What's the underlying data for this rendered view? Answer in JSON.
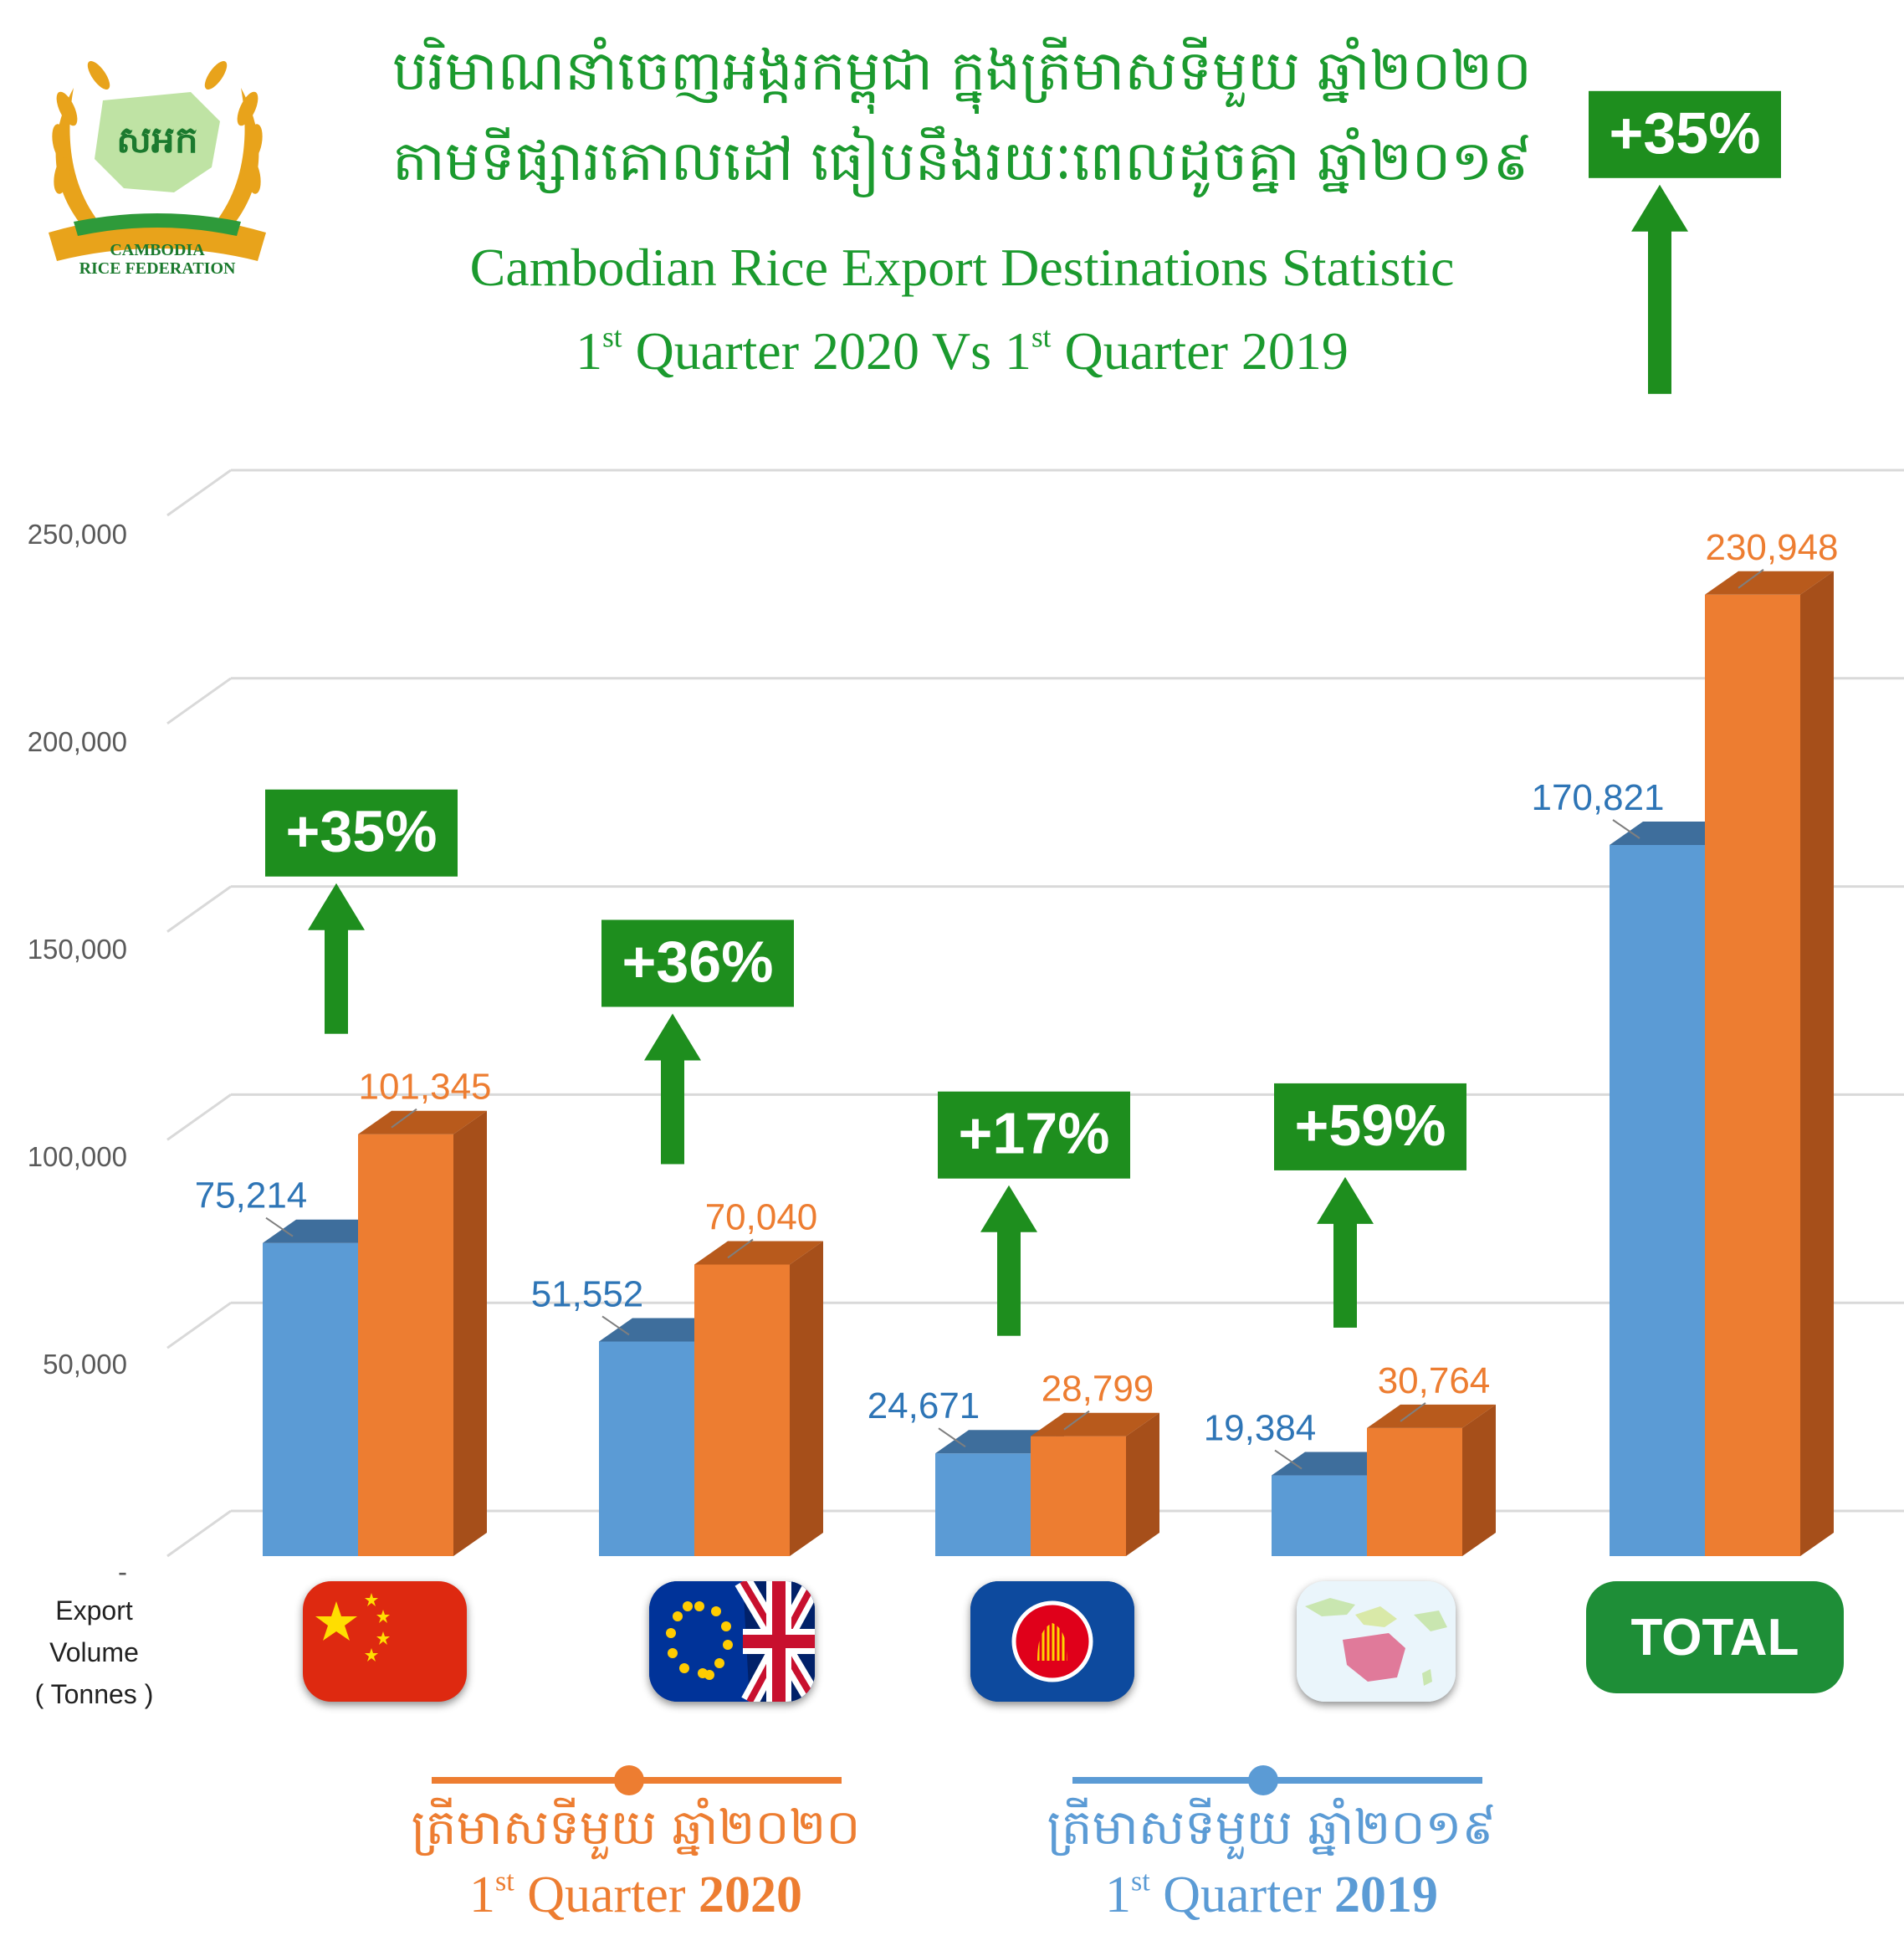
{
  "header": {
    "title_km_line1": "បរិមាណនាំចេញអង្ករកម្ពុជា ក្នុងត្រីមាសទីមួយ ឆ្នាំ២០២០",
    "title_km_line2": "តាមទីផ្សារគោលដៅ ធៀបនឹងរយៈពេលដូចគ្នា ឆ្នាំ២០១៩",
    "title_en_line1": "Cambodian Rice Export Destinations Statistic",
    "title_en_line2_num1": "1",
    "title_en_line2_sup1": "st",
    "title_en_line2_mid": " Quarter 2020 Vs 1",
    "title_en_line2_sup2": "st",
    "title_en_line2_end": " Quarter 2019"
  },
  "logo": {
    "badge_text": "សអក",
    "name_line1": "CAMBODIA",
    "name_line2": "RICE FEDERATION",
    "colors": {
      "green": "#2e9a3a",
      "gold": "#e8a31b"
    }
  },
  "axis": {
    "title_line1": "Export",
    "title_line2": "Volume",
    "title_line3": "( Tonnes )"
  },
  "chart_data": {
    "type": "bar",
    "categories": [
      "China",
      "EU & UK",
      "ASEAN",
      "Asia-Pacific",
      "TOTAL"
    ],
    "series": [
      {
        "name": "1st Quarter 2019",
        "color": "#5b9bd5",
        "values": [
          75214,
          51552,
          24671,
          19384,
          170821
        ]
      },
      {
        "name": "1st Quarter 2020",
        "color": "#ed7d31",
        "values": [
          101345,
          70040,
          28799,
          30764,
          230948
        ]
      }
    ],
    "value_labels_2019": [
      "75,214",
      "51,552",
      "24,671",
      "19,384",
      "170,821"
    ],
    "value_labels_2020": [
      "101,345",
      "70,040",
      "28,799",
      "30,764",
      "230,948"
    ],
    "growth_labels": [
      "+35%",
      "+36%",
      "+17%",
      "+59%",
      "+35%"
    ],
    "ylim": [
      0,
      250000
    ],
    "yticks": [
      0,
      50000,
      100000,
      150000,
      200000,
      250000
    ],
    "ytick_labels": [
      "-",
      "50,000",
      "100,000",
      "150,000",
      "200,000",
      "250,000"
    ],
    "grid": true,
    "style": "3d-clustered-bar",
    "growth_color": "#1e8e1e"
  },
  "category_icons": {
    "china": "china-flag-icon",
    "eu_uk": "eu-uk-flag-icon",
    "asean": "asean-flag-icon",
    "asia_pacific": "asia-pacific-map-icon",
    "total_label": "TOTAL"
  },
  "legend": {
    "q2020_km": "ត្រីមាសទីមួយ ឆ្នាំ២០២០",
    "q2020_en_num": "1",
    "q2020_en_sup": "st",
    "q2020_en_word": " Quarter  ",
    "q2020_en_year": "2020",
    "q2020_color": "#ed7d31",
    "q2019_km": "ត្រីមាសទីមួយ ឆ្នាំ២០១៩",
    "q2019_en_num": "1",
    "q2019_en_sup": "st",
    "q2019_en_word": " Quarter  ",
    "q2019_en_year": "2019",
    "q2019_color": "#5b9bd5"
  }
}
